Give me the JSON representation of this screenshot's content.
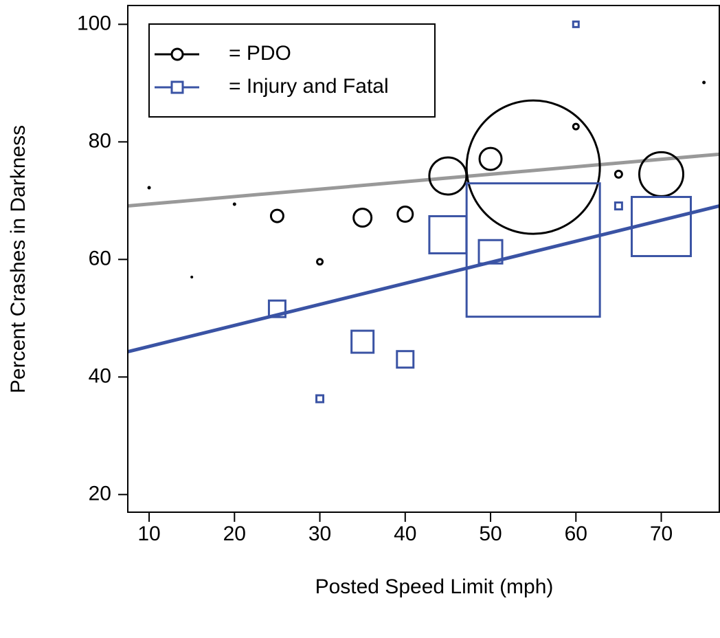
{
  "chart_data": {
    "type": "bubble",
    "xlabel": "Posted Speed Limit (mph)",
    "ylabel": "Percent Crashes in Darkness",
    "xlim": [
      7.5,
      76.8
    ],
    "ylim": [
      17,
      103.2
    ],
    "xticks": [
      10,
      20,
      30,
      40,
      50,
      60,
      70
    ],
    "yticks": [
      20,
      40,
      60,
      80,
      100
    ],
    "legend": "top-left",
    "series": [
      {
        "name": "= PDO",
        "color": "#000000",
        "marker": "circle",
        "x": [
          10,
          15,
          20,
          25,
          30,
          35,
          40,
          45,
          50,
          55,
          60,
          65,
          70,
          75
        ],
        "values": [
          72.2,
          57.0,
          69.4,
          67.4,
          59.6,
          67.1,
          67.7,
          74.2,
          77.1,
          75.7,
          82.6,
          74.5,
          74.5,
          90.1
        ],
        "sizes": [
          2,
          1.5,
          2,
          9,
          4,
          13,
          11,
          27,
          16,
          97,
          4,
          5,
          32,
          2
        ],
        "trend": {
          "color": "#999999",
          "x": [
            7.5,
            76.8
          ],
          "values": [
            69.1,
            77.9
          ]
        }
      },
      {
        "name": "= Injury and Fatal",
        "color": "#3a53a4",
        "marker": "square",
        "x": [
          25,
          30,
          35,
          40,
          45,
          50,
          55,
          60,
          65,
          70
        ],
        "values": [
          51.6,
          36.3,
          46.0,
          43.0,
          64.2,
          61.3,
          61.6,
          100,
          69.1,
          65.6
        ],
        "sizes": [
          12,
          5,
          16,
          12,
          27,
          17,
          97,
          4,
          5,
          43
        ],
        "trend": {
          "color": "#3a53a4",
          "x": [
            7.5,
            76.8
          ],
          "values": [
            44.3,
            69.1
          ]
        }
      }
    ]
  }
}
